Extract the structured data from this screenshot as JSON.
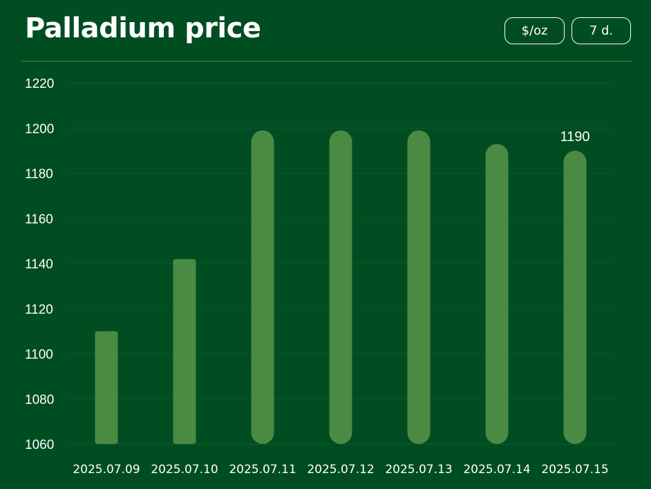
{
  "header": {
    "title": "Palladium price",
    "unit_button": "$/oz",
    "range_button": "7 d."
  },
  "colors": {
    "background": "#004d22",
    "bar": "#4a8a42",
    "gridline": "#0b5a2b",
    "text": "#ffffff"
  },
  "chart_data": {
    "type": "bar",
    "title": "Palladium price",
    "xlabel": "",
    "ylabel": "",
    "categories": [
      "2025.07.09",
      "2025.07.10",
      "2025.07.11",
      "2025.07.12",
      "2025.07.13",
      "2025.07.14",
      "2025.07.15"
    ],
    "values": [
      1110,
      1142,
      1199,
      1199,
      1199,
      1193,
      1190
    ],
    "ylim": [
      1060,
      1220
    ],
    "yticks": [
      1060,
      1080,
      1100,
      1120,
      1140,
      1160,
      1180,
      1200,
      1220
    ],
    "grid": true,
    "highlight_label": "1190"
  }
}
